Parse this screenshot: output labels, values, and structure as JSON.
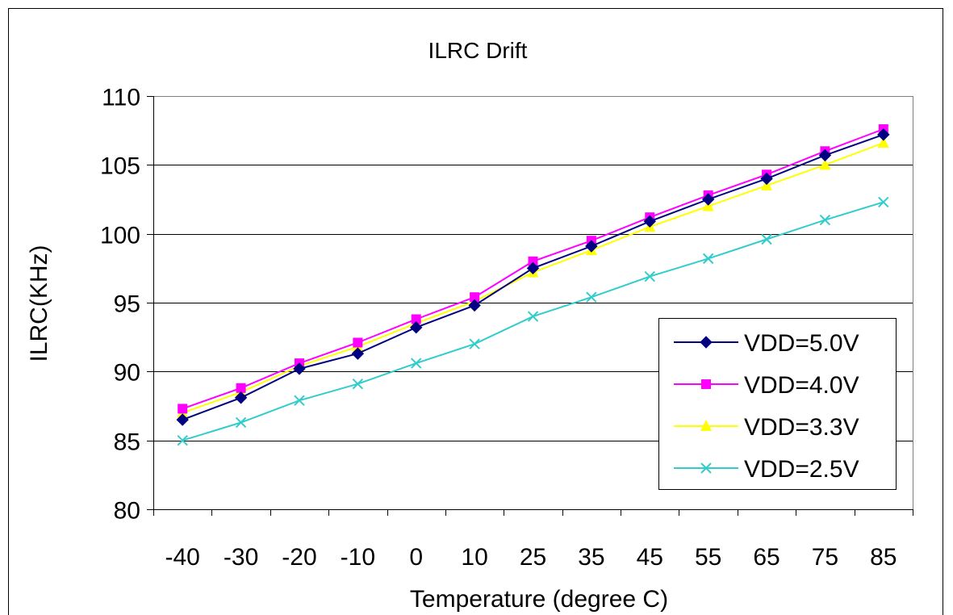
{
  "chart_data": {
    "type": "line",
    "title": "ILRC Drift",
    "xlabel": "Temperature (degree C)",
    "ylabel": "ILRC(KHz)",
    "categories": [
      "-40",
      "-30",
      "-20",
      "-10",
      "0",
      "10",
      "25",
      "35",
      "45",
      "55",
      "65",
      "75",
      "85"
    ],
    "ylim": [
      80,
      110
    ],
    "yticks": [
      "80",
      "85",
      "90",
      "95",
      "100",
      "105",
      "110"
    ],
    "grid": "horizontal",
    "legend_position": "bottom-right",
    "series": [
      {
        "name": "VDD=5.0V",
        "color": "#000080",
        "marker": "diamond",
        "values": [
          86.5,
          88.1,
          90.2,
          91.3,
          93.2,
          94.8,
          97.5,
          99.1,
          100.9,
          102.5,
          104.0,
          105.7,
          107.2
        ]
      },
      {
        "name": "VDD=4.0V",
        "color": "#FF00FF",
        "marker": "square",
        "values": [
          87.3,
          88.8,
          90.6,
          92.1,
          93.8,
          95.4,
          98.0,
          99.5,
          101.2,
          102.8,
          104.3,
          106.0,
          107.6
        ]
      },
      {
        "name": "VDD=3.3V",
        "color": "#FFFF00",
        "marker": "triangle",
        "values": [
          87.0,
          88.5,
          90.4,
          91.8,
          93.5,
          95.1,
          97.2,
          98.8,
          100.5,
          102.0,
          103.5,
          105.0,
          106.6
        ]
      },
      {
        "name": "VDD=2.5V",
        "color": "#33CCCC",
        "marker": "x",
        "values": [
          85.0,
          86.3,
          87.9,
          89.1,
          90.6,
          92.0,
          94.0,
          95.4,
          96.9,
          98.2,
          99.6,
          101.0,
          102.3
        ]
      }
    ]
  }
}
